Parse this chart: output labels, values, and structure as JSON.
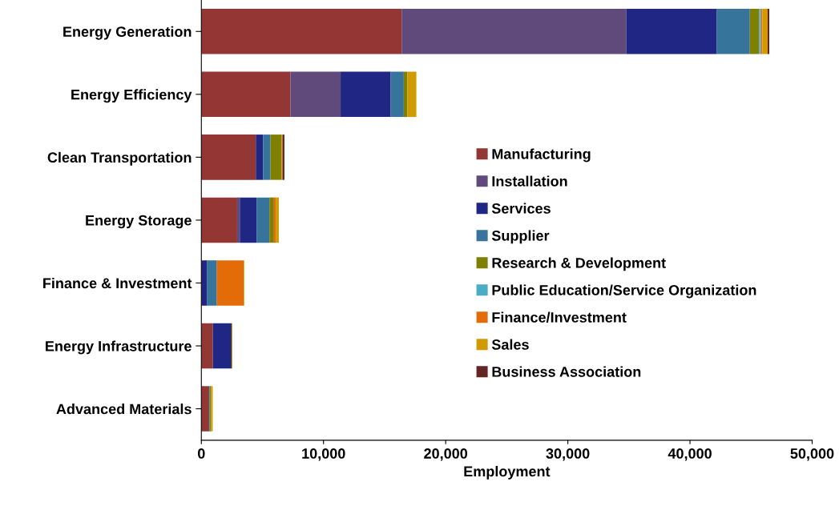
{
  "chart_data": {
    "type": "bar",
    "orientation": "horizontal",
    "stacked": true,
    "xlabel": "Employment",
    "categories": [
      "Energy Generation",
      "Energy Efficiency",
      "Clean Transportation",
      "Energy Storage",
      "Finance & Investment",
      "Energy Infrastructure",
      "Advanced Materials"
    ],
    "series": [
      {
        "name": "Manufacturing",
        "color": "#943634",
        "values": [
          16400,
          7300,
          4460,
          2930,
          0,
          940,
          590
        ]
      },
      {
        "name": "Installation",
        "color": "#604a7b",
        "values": [
          18400,
          4100,
          0,
          220,
          0,
          0,
          0
        ]
      },
      {
        "name": "Services",
        "color": "#1f2683",
        "values": [
          7400,
          4100,
          590,
          1370,
          480,
          1530,
          70
        ]
      },
      {
        "name": "Supplier",
        "color": "#37749b",
        "values": [
          2700,
          1070,
          610,
          1050,
          790,
          0,
          0
        ]
      },
      {
        "name": "Research & Development",
        "color": "#7f7f00",
        "values": [
          760,
          300,
          890,
          370,
          null,
          0,
          140
        ]
      },
      {
        "name": "Public Education/Service Organization",
        "color": "#4bacc6",
        "values": [
          150,
          0,
          0,
          0,
          0,
          0,
          0
        ]
      },
      {
        "name": "Finance/Investment",
        "color": "#e36c09",
        "values": [
          120,
          0,
          0,
          150,
          2200,
          0,
          0
        ]
      },
      {
        "name": "Sales",
        "color": "#d09b00",
        "values": [
          430,
          730,
          90,
          250,
          50,
          70,
          130
        ]
      },
      {
        "name": "Business Association",
        "color": "#632423",
        "values": [
          130,
          0,
          160,
          0,
          0,
          0,
          0
        ]
      }
    ],
    "xlim": [
      0,
      50000
    ],
    "xticks": [
      {
        "value": 0,
        "label": "0"
      },
      {
        "value": 10000,
        "label": "10,000"
      },
      {
        "value": 20000,
        "label": "20,000"
      },
      {
        "value": 30000,
        "label": "30,000"
      },
      {
        "value": 40000,
        "label": "40,000"
      },
      {
        "value": 50000,
        "label": "50,000"
      }
    ],
    "grid": false,
    "legend": "right"
  }
}
